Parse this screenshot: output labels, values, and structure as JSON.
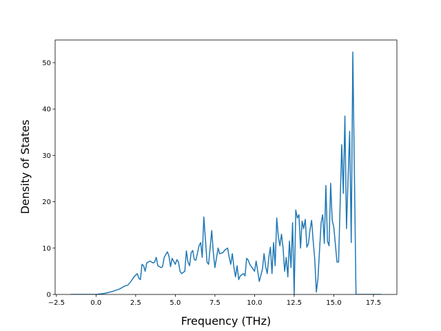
{
  "chart_data": {
    "type": "line",
    "xlabel": "Frequency (THz)",
    "ylabel": "Density of States",
    "x": [
      -1.6,
      0,
      0.5,
      1.0,
      1.5,
      1.8,
      2.0,
      2.2,
      2.4,
      2.6,
      2.7,
      2.8,
      2.9,
      3.0,
      3.1,
      3.2,
      3.4,
      3.6,
      3.7,
      3.8,
      3.9,
      4.1,
      4.2,
      4.3,
      4.5,
      4.6,
      4.7,
      4.8,
      5.0,
      5.1,
      5.2,
      5.3,
      5.4,
      5.6,
      5.7,
      5.8,
      5.9,
      6.0,
      6.1,
      6.2,
      6.3,
      6.5,
      6.6,
      6.7,
      6.8,
      6.9,
      7.0,
      7.1,
      7.3,
      7.4,
      7.5,
      7.7,
      7.8,
      8.0,
      8.1,
      8.3,
      8.4,
      8.5,
      8.6,
      8.7,
      8.8,
      8.9,
      9.0,
      9.1,
      9.3,
      9.4,
      9.5,
      9.6,
      9.7,
      9.8,
      10.0,
      10.1,
      10.2,
      10.3,
      10.5,
      10.6,
      10.7,
      10.8,
      10.9,
      11.0,
      11.1,
      11.2,
      11.3,
      11.4,
      11.5,
      11.6,
      11.7,
      11.8,
      11.9,
      12.0,
      12.1,
      12.2,
      12.3,
      12.4,
      12.5,
      12.6,
      12.7,
      12.8,
      12.9,
      13.0,
      13.1,
      13.2,
      13.3,
      13.4,
      13.5,
      13.6,
      13.7,
      13.8,
      13.9,
      14.0,
      14.2,
      14.3,
      14.4,
      14.5,
      14.6,
      14.7,
      14.8,
      14.9,
      15.0,
      15.2,
      15.3,
      15.5,
      15.6,
      15.7,
      15.8,
      15.9,
      16.0,
      16.1,
      16.2,
      16.4,
      18.0
    ],
    "series": [
      {
        "color": "#1f77b4",
        "values": [
          0,
          0,
          0.2,
          0.6,
          1.2,
          1.8,
          2.0,
          2.8,
          3.8,
          4.5,
          3.5,
          3.2,
          6.5,
          6.2,
          5.0,
          6.8,
          7.2,
          6.8,
          7.0,
          8.0,
          6.2,
          5.8,
          6.0,
          8.0,
          9.2,
          8.3,
          6.0,
          7.8,
          6.5,
          7.5,
          7.0,
          5.0,
          4.5,
          5.0,
          9.4,
          7.0,
          6.2,
          9.0,
          9.5,
          7.5,
          7.4,
          10.5,
          11.2,
          8.0,
          16.7,
          12.0,
          7.0,
          6.5,
          13.8,
          9.0,
          5.8,
          10.0,
          8.8,
          9.0,
          9.5,
          10.0,
          8.0,
          6.5,
          8.8,
          5.8,
          3.8,
          6.2,
          3.2,
          4.0,
          4.5,
          4.0,
          7.8,
          7.4,
          6.5,
          6.0,
          5.0,
          7.2,
          5.0,
          2.8,
          5.5,
          8.8,
          6.0,
          4.5,
          8.0,
          10.2,
          4.5,
          11.2,
          6.2,
          16.5,
          12.5,
          10.5,
          13.0,
          10.0,
          5.0,
          8.0,
          3.8,
          11.5,
          5.8,
          15.5,
          0,
          18.2,
          16.5,
          17.2,
          10.0,
          15.8,
          14.2,
          16.2,
          10.2,
          11.0,
          14.0,
          16.0,
          11.5,
          7.5,
          0.5,
          3.5,
          15.5,
          17.2,
          11.0,
          23.5,
          11.5,
          10.5,
          24.0,
          16.0,
          14.5,
          7.0,
          7.0,
          32.3,
          21.8,
          38.5,
          14.2,
          25.0,
          35.2,
          11.2,
          52.3,
          0,
          0
        ]
      }
    ],
    "xlim": [
      -2.58,
      18.98
    ],
    "xticks": [
      {
        "value": -2.5,
        "label": "−2.5"
      },
      {
        "value": 0,
        "label": "0.0"
      },
      {
        "value": 2.5,
        "label": "2.5"
      },
      {
        "value": 5,
        "label": "5.0"
      },
      {
        "value": 7.5,
        "label": "7.5"
      },
      {
        "value": 10,
        "label": "10.0"
      },
      {
        "value": 12.5,
        "label": "12.5"
      },
      {
        "value": 15,
        "label": "15.0"
      },
      {
        "value": 17.5,
        "label": "17.5"
      }
    ],
    "ylim": [
      0,
      54.9
    ],
    "yticks": [
      0,
      10,
      20,
      30,
      40,
      50
    ]
  }
}
